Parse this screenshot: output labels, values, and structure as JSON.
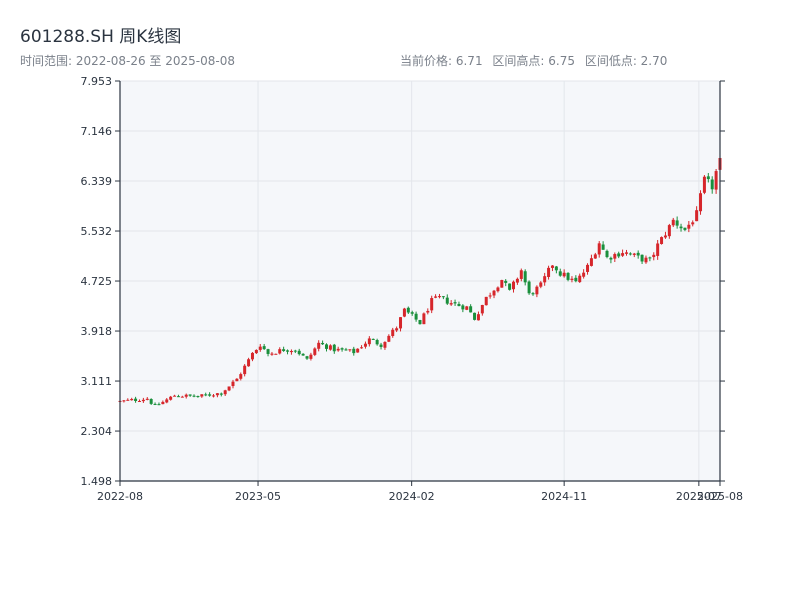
{
  "header": {
    "title": "601288.SH 周K线图",
    "range_text": "时间范围: 2022-08-26 至 2025-08-08",
    "price_text": "当前价格: 6.71",
    "high_text": "区间高点: 6.75",
    "low_text": "区间低点: 2.70"
  },
  "colors": {
    "up": "#d6262b",
    "down": "#1a8f3c",
    "plot_bg": "#f5f7fa",
    "grid": "#e3e6eb",
    "axis": "#2b3440"
  },
  "chart_data": {
    "type": "candlestick",
    "y_ticks": [
      "1.498",
      "2.304",
      "3.111",
      "3.918",
      "4.725",
      "5.532",
      "6.339",
      "7.146",
      "7.953"
    ],
    "ylim": [
      1.498,
      7.953
    ],
    "x_ticks": [
      {
        "label": "2022-08",
        "date": "2022-08-26"
      },
      {
        "label": "2023-05",
        "date": "2023-05-01"
      },
      {
        "label": "2024-02",
        "date": "2024-02-01"
      },
      {
        "label": "2024-11",
        "date": "2024-11-01"
      },
      {
        "label": "2025-07",
        "date": "2025-07-01"
      },
      {
        "label": "2025-08",
        "date": "2025-08-08"
      }
    ],
    "start_date": "2022-08-26",
    "end_date": "2025-08-08",
    "anchors": [
      [
        "2022-08-26",
        2.78
      ],
      [
        "2022-10-14",
        2.83
      ],
      [
        "2022-10-28",
        2.7
      ],
      [
        "2022-12-02",
        2.88
      ],
      [
        "2023-01-13",
        2.86
      ],
      [
        "2023-02-24",
        2.92
      ],
      [
        "2023-03-24",
        3.14
      ],
      [
        "2023-04-21",
        3.55
      ],
      [
        "2023-05-05",
        3.7
      ],
      [
        "2023-05-19",
        3.55
      ],
      [
        "2023-06-16",
        3.62
      ],
      [
        "2023-07-07",
        3.62
      ],
      [
        "2023-07-28",
        3.45
      ],
      [
        "2023-08-18",
        3.72
      ],
      [
        "2023-09-15",
        3.62
      ],
      [
        "2023-10-20",
        3.58
      ],
      [
        "2023-11-17",
        3.78
      ],
      [
        "2023-12-08",
        3.7
      ],
      [
        "2024-01-05",
        3.98
      ],
      [
        "2024-01-19",
        4.25
      ],
      [
        "2024-02-16",
        4.05
      ],
      [
        "2024-03-08",
        4.4
      ],
      [
        "2024-03-22",
        4.45
      ],
      [
        "2024-04-19",
        4.35
      ],
      [
        "2024-05-10",
        4.3
      ],
      [
        "2024-05-24",
        4.12
      ],
      [
        "2024-06-14",
        4.45
      ],
      [
        "2024-07-12",
        4.75
      ],
      [
        "2024-07-26",
        4.55
      ],
      [
        "2024-08-16",
        4.9
      ],
      [
        "2024-08-30",
        4.5
      ],
      [
        "2024-09-20",
        4.65
      ],
      [
        "2024-10-11",
        5.0
      ],
      [
        "2024-10-25",
        4.85
      ],
      [
        "2024-11-22",
        4.7
      ],
      [
        "2024-12-13",
        4.95
      ],
      [
        "2025-01-03",
        5.35
      ],
      [
        "2025-01-17",
        5.1
      ],
      [
        "2025-02-14",
        5.2
      ],
      [
        "2025-03-14",
        5.1
      ],
      [
        "2025-04-04",
        5.05
      ],
      [
        "2025-04-18",
        5.3
      ],
      [
        "2025-05-16",
        5.7
      ],
      [
        "2025-06-06",
        5.55
      ],
      [
        "2025-06-27",
        5.8
      ],
      [
        "2025-07-11",
        6.35
      ],
      [
        "2025-07-25",
        6.25
      ],
      [
        "2025-08-08",
        6.71
      ]
    ]
  }
}
